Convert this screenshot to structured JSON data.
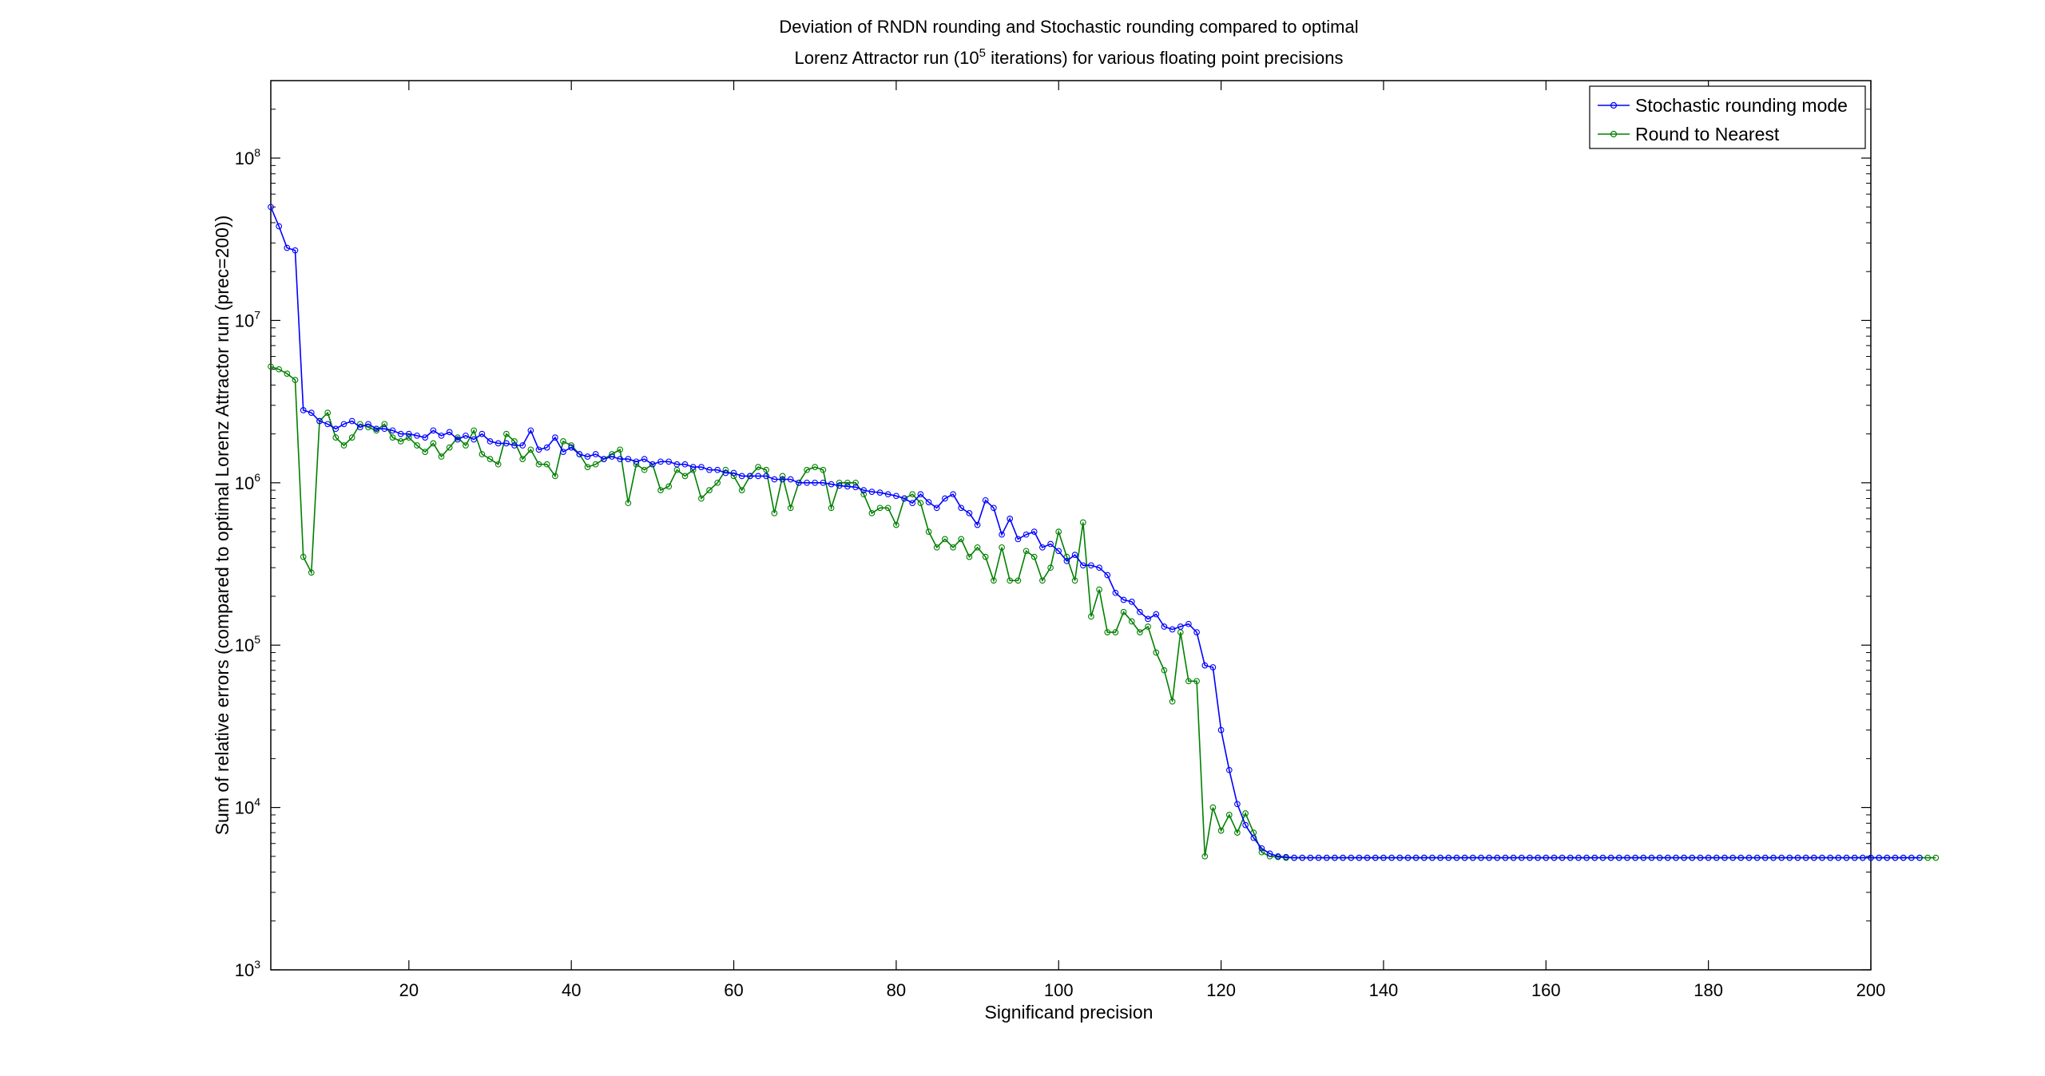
{
  "chart_data": {
    "type": "line",
    "title_line1": "Deviation of RNDN rounding and Stochastic rounding compared to optimal",
    "title_line2_before": "Lorenz Attractor run (10",
    "title_line2_sup": "5",
    "title_line2_after": " iterations) for various floating point precisions",
    "xlabel": "Significand precision",
    "ylabel": "Sum of relative errors (compared to optimal Lorenz Attractor run (prec=200))",
    "xlim": [
      3,
      200
    ],
    "ylim": [
      1000,
      300000000
    ],
    "yscale": "log",
    "grid": false,
    "legend_position": "top-right",
    "x_ticks": [
      20,
      40,
      60,
      80,
      100,
      120,
      140,
      160,
      180,
      200
    ],
    "y_ticks": [
      {
        "value": 1000,
        "base": "10",
        "exp": "3"
      },
      {
        "value": 10000,
        "base": "10",
        "exp": "4"
      },
      {
        "value": 100000,
        "base": "10",
        "exp": "5"
      },
      {
        "value": 1000000,
        "base": "10",
        "exp": "6"
      },
      {
        "value": 10000000,
        "base": "10",
        "exp": "7"
      },
      {
        "value": 100000000,
        "base": "10",
        "exp": "8"
      }
    ],
    "x_start": 3,
    "x_step": 1,
    "series": [
      {
        "name": "Stochastic rounding mode",
        "color": "#0000ff",
        "values": [
          50000000,
          38000000,
          28000000,
          27000000,
          2800000,
          2700000,
          2400000,
          2300000,
          2150000,
          2300000,
          2400000,
          2200000,
          2300000,
          2150000,
          2150000,
          2100000,
          2000000,
          2000000,
          1950000,
          1900000,
          2100000,
          1950000,
          2050000,
          1850000,
          1950000,
          1850000,
          2000000,
          1800000,
          1750000,
          1750000,
          1700000,
          1700000,
          2100000,
          1600000,
          1650000,
          1900000,
          1550000,
          1650000,
          1500000,
          1450000,
          1500000,
          1400000,
          1450000,
          1400000,
          1400000,
          1350000,
          1400000,
          1300000,
          1350000,
          1350000,
          1300000,
          1300000,
          1250000,
          1250000,
          1200000,
          1200000,
          1150000,
          1150000,
          1100000,
          1100000,
          1100000,
          1100000,
          1050000,
          1050000,
          1050000,
          1000000,
          1000000,
          1000000,
          1000000,
          980000,
          960000,
          950000,
          940000,
          900000,
          880000,
          870000,
          850000,
          830000,
          800000,
          750000,
          850000,
          760000,
          700000,
          800000,
          850000,
          700000,
          650000,
          550000,
          780000,
          700000,
          480000,
          600000,
          450000,
          480000,
          500000,
          400000,
          420000,
          380000,
          330000,
          360000,
          310000,
          310000,
          300000,
          270000,
          210000,
          190000,
          185000,
          160000,
          145000,
          155000,
          130000,
          125000,
          130000,
          135000,
          120000,
          75000,
          73000,
          30000,
          17000,
          10500,
          7800,
          6500,
          5600,
          5200,
          5000,
          4950,
          4900,
          4900,
          4900,
          4900,
          4900,
          4900,
          4900,
          4900,
          4900,
          4900,
          4900,
          4900,
          4900,
          4900,
          4900,
          4900,
          4900,
          4900,
          4900,
          4900,
          4900,
          4900,
          4900,
          4900,
          4900,
          4900,
          4900,
          4900,
          4900,
          4900,
          4900,
          4900,
          4900,
          4900,
          4900,
          4900,
          4900,
          4900,
          4900,
          4900,
          4900,
          4900,
          4900,
          4900,
          4900,
          4900,
          4900,
          4900,
          4900,
          4900,
          4900,
          4900,
          4900,
          4900,
          4900,
          4900,
          4900,
          4900,
          4900,
          4900,
          4900,
          4900,
          4900,
          4900,
          4900,
          4900,
          4900,
          4900,
          4900,
          4900,
          4900,
          4900,
          4900,
          4900,
          4900,
          4900,
          4900,
          4900
        ]
      },
      {
        "name": "Round to Nearest",
        "color": "#008000",
        "values": [
          5200000,
          5000000,
          4700000,
          4300000,
          350000,
          280000,
          2400000,
          2700000,
          1900000,
          1700000,
          1900000,
          2300000,
          2200000,
          2100000,
          2300000,
          1900000,
          1800000,
          1900000,
          1700000,
          1550000,
          1750000,
          1450000,
          1650000,
          1900000,
          1700000,
          2100000,
          1500000,
          1400000,
          1300000,
          2000000,
          1800000,
          1400000,
          1600000,
          1300000,
          1300000,
          1100000,
          1800000,
          1700000,
          1500000,
          1250000,
          1300000,
          1400000,
          1500000,
          1600000,
          750000,
          1300000,
          1200000,
          1300000,
          900000,
          950000,
          1200000,
          1100000,
          1200000,
          800000,
          900000,
          1000000,
          1200000,
          1100000,
          900000,
          1100000,
          1250000,
          1200000,
          650000,
          1100000,
          700000,
          1000000,
          1200000,
          1250000,
          1200000,
          700000,
          1000000,
          1000000,
          1000000,
          850000,
          650000,
          700000,
          700000,
          550000,
          800000,
          850000,
          750000,
          500000,
          400000,
          450000,
          400000,
          450000,
          350000,
          400000,
          350000,
          250000,
          400000,
          250000,
          250000,
          380000,
          350000,
          250000,
          300000,
          500000,
          350000,
          250000,
          570000,
          150000,
          220000,
          120000,
          120000,
          160000,
          140000,
          120000,
          130000,
          90000,
          70000,
          45000,
          120000,
          60000,
          60000,
          5000,
          10000,
          7200,
          9000,
          7000,
          9200,
          7000,
          5300,
          5000,
          4950,
          4900,
          4900,
          4900,
          4900,
          4900,
          4900,
          4900,
          4900,
          4900,
          4900,
          4900,
          4900,
          4900,
          4900,
          4900,
          4900,
          4900,
          4900,
          4900,
          4900,
          4900,
          4900,
          4900,
          4900,
          4900,
          4900,
          4900,
          4900,
          4900,
          4900,
          4900,
          4900,
          4900,
          4900,
          4900,
          4900,
          4900,
          4900,
          4900,
          4900,
          4900,
          4900,
          4900,
          4900,
          4900,
          4900,
          4900,
          4900,
          4900,
          4900,
          4900,
          4900,
          4900,
          4900,
          4900,
          4900,
          4900,
          4900,
          4900,
          4900,
          4900,
          4900,
          4900,
          4900,
          4900,
          4900,
          4900,
          4900,
          4900,
          4900,
          4900,
          4900,
          4900,
          4900,
          4900,
          4900,
          4900,
          4900,
          4900,
          4900,
          4900
        ]
      }
    ]
  }
}
